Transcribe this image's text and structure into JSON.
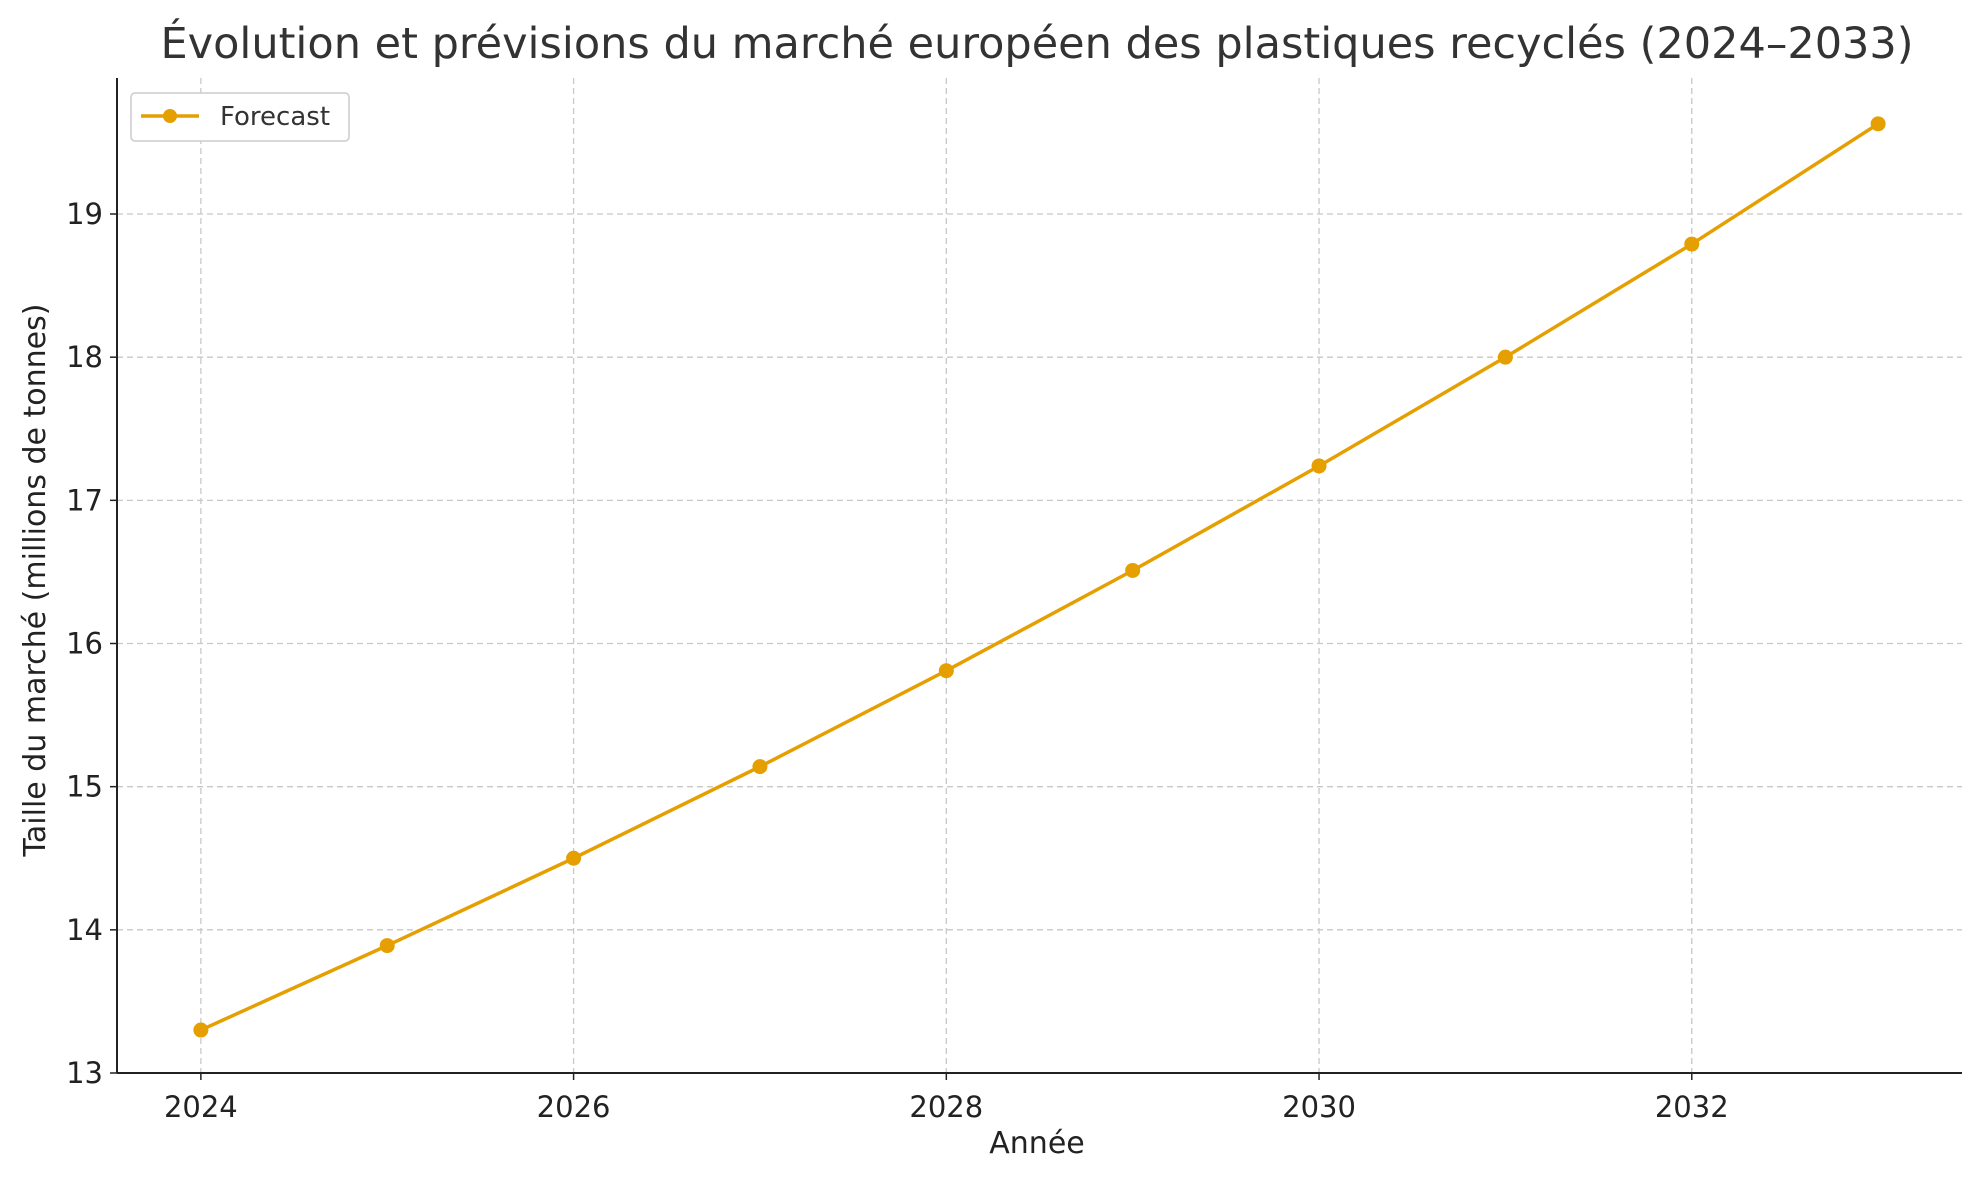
{
  "chart_data": {
    "type": "line",
    "title": "Évolution et prévisions du marché européen des plastiques recyclés (2024–2033)",
    "xlabel": "Année",
    "ylabel": "Taille du marché (millions de tonnes)",
    "x": [
      2024,
      2025,
      2026,
      2027,
      2028,
      2029,
      2030,
      2031,
      2032,
      2033
    ],
    "series": [
      {
        "name": "Forecast",
        "color": "#E69F00",
        "marker": "circle",
        "values": [
          13.3,
          13.89,
          14.5,
          15.14,
          15.81,
          16.51,
          17.24,
          18.0,
          18.79,
          19.63
        ]
      }
    ],
    "xlim": [
      2023.55,
      2033.45
    ],
    "ylim": [
      13.0,
      19.95
    ],
    "xticks": [
      2024,
      2026,
      2028,
      2030,
      2032
    ],
    "yticks": [
      13,
      14,
      15,
      16,
      17,
      18,
      19
    ],
    "grid": true,
    "legend_position": "top-left"
  }
}
